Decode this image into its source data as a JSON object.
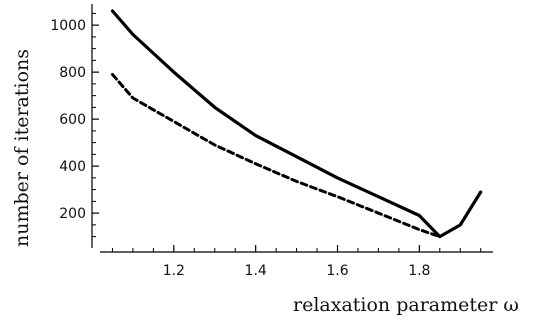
{
  "chart_data": {
    "type": "line",
    "title": "",
    "xlabel": "relaxation parameter ω",
    "ylabel": "number of iterations",
    "xlim": [
      1.0,
      1.98
    ],
    "ylim": [
      60,
      1090
    ],
    "x_ticks": [
      1.2,
      1.4,
      1.6,
      1.8
    ],
    "y_ticks": [
      200,
      400,
      600,
      800,
      1000
    ],
    "grid": false,
    "legend": "none",
    "series": [
      {
        "style": "solid",
        "color": "#000000",
        "x": [
          1.05,
          1.1,
          1.2,
          1.3,
          1.4,
          1.5,
          1.6,
          1.7,
          1.8,
          1.85,
          1.9,
          1.95
        ],
        "y": [
          1060,
          960,
          800,
          650,
          530,
          440,
          350,
          270,
          190,
          100,
          150,
          290
        ]
      },
      {
        "style": "dashed",
        "color": "#000000",
        "x": [
          1.05,
          1.1,
          1.2,
          1.3,
          1.4,
          1.5,
          1.6,
          1.7,
          1.8,
          1.85
        ],
        "y": [
          790,
          690,
          590,
          490,
          410,
          335,
          270,
          200,
          130,
          100
        ]
      }
    ]
  }
}
